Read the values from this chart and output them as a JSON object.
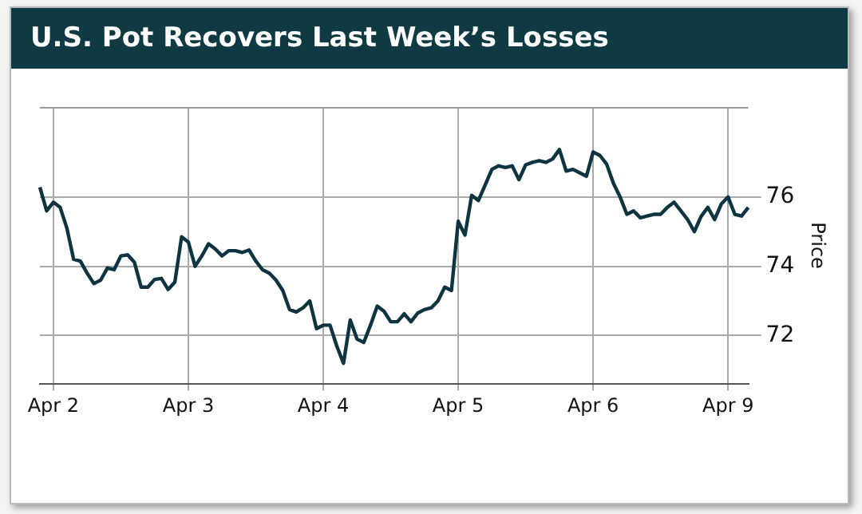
{
  "chart_data": {
    "type": "line",
    "title": "U.S. Pot Recovers Last Week’s Losses",
    "ylabel": "Price",
    "categories": [
      null,
      null,
      "Apr 2",
      null,
      null,
      null,
      null,
      null,
      null,
      null,
      null,
      null,
      null,
      null,
      null,
      null,
      null,
      null,
      null,
      null,
      null,
      null,
      "Apr 3",
      null,
      null,
      null,
      null,
      null,
      null,
      null,
      null,
      null,
      null,
      null,
      null,
      null,
      null,
      null,
      null,
      null,
      null,
      null,
      "Apr 4",
      null,
      null,
      null,
      null,
      null,
      null,
      null,
      null,
      null,
      null,
      null,
      null,
      null,
      null,
      null,
      null,
      null,
      null,
      null,
      "Apr 5",
      null,
      null,
      null,
      null,
      null,
      null,
      null,
      null,
      null,
      null,
      null,
      null,
      null,
      null,
      null,
      null,
      null,
      null,
      null,
      "Apr 6",
      null,
      null,
      null,
      null,
      null,
      null,
      null,
      null,
      null,
      null,
      null,
      null,
      null,
      null,
      null,
      null,
      null,
      null,
      null,
      "Apr 9",
      null,
      null,
      null
    ],
    "ylim": [
      70.6,
      78.6
    ],
    "yticks": [
      72,
      74,
      76
    ],
    "grid": true,
    "legend": false,
    "marker": "none",
    "line_style": "solid",
    "series": [
      {
        "color": "#0d3440",
        "values": [
          76.28,
          75.6,
          75.85,
          75.7,
          75.1,
          74.2,
          74.15,
          73.8,
          73.5,
          73.6,
          73.95,
          73.9,
          74.3,
          74.33,
          74.12,
          73.4,
          73.4,
          73.62,
          73.65,
          73.33,
          73.54,
          74.85,
          74.7,
          74.0,
          74.3,
          74.65,
          74.5,
          74.3,
          74.45,
          74.45,
          74.4,
          74.47,
          74.15,
          73.9,
          73.8,
          73.6,
          73.3,
          72.75,
          72.68,
          72.8,
          73.0,
          72.2,
          72.3,
          72.3,
          71.7,
          71.2,
          72.45,
          71.9,
          71.8,
          72.3,
          72.85,
          72.7,
          72.4,
          72.4,
          72.63,
          72.4,
          72.65,
          72.75,
          72.8,
          73.0,
          73.4,
          73.3,
          75.3,
          74.9,
          76.05,
          75.9,
          76.35,
          76.8,
          76.9,
          76.85,
          76.9,
          76.5,
          76.93,
          77.0,
          77.05,
          77.0,
          77.1,
          77.37,
          76.75,
          76.8,
          76.7,
          76.6,
          77.3,
          77.2,
          76.95,
          76.4,
          76.0,
          75.5,
          75.6,
          75.4,
          75.45,
          75.5,
          75.5,
          75.7,
          75.85,
          75.6,
          75.35,
          75.0,
          75.44,
          75.7,
          75.35,
          75.8,
          76.0,
          75.5,
          75.45,
          75.7
        ]
      }
    ]
  }
}
